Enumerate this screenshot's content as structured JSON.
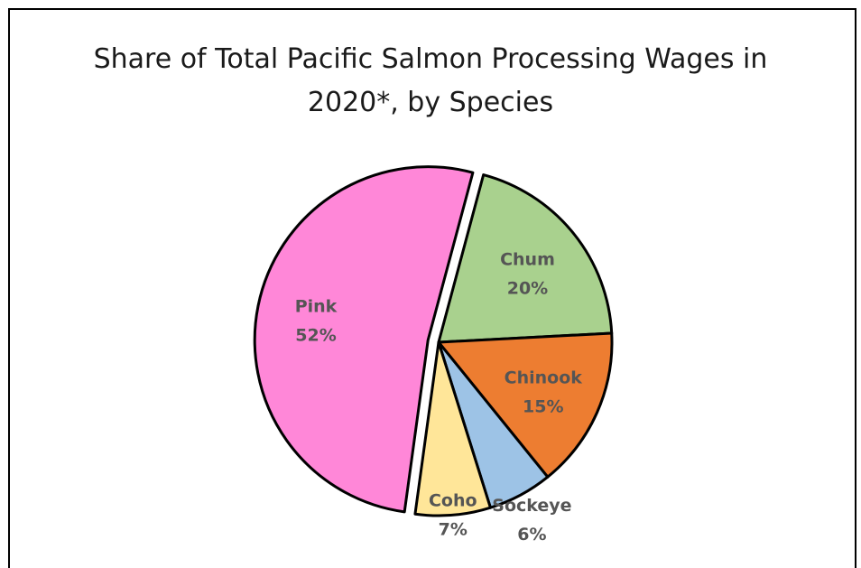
{
  "chart_data": {
    "type": "pie",
    "title_lines": [
      "Share of Total Pacific Salmon Processing Wages in",
      "2020*, by Species"
    ],
    "slices": [
      {
        "label": "Chum",
        "value": 20,
        "value_label": "20%",
        "color": "#a9d18e"
      },
      {
        "label": "Chinook",
        "value": 15,
        "value_label": "15%",
        "color": "#ed7d31"
      },
      {
        "label": "Sockeye",
        "value": 6,
        "value_label": "6%",
        "color": "#9dc3e6"
      },
      {
        "label": "Coho",
        "value": 7,
        "value_label": "7%",
        "color": "#ffe699"
      },
      {
        "label": "Pink",
        "value": 52,
        "value_label": "52%",
        "color": "#ff87d8"
      }
    ],
    "exploded_slice": "Pink",
    "legend": "none"
  }
}
